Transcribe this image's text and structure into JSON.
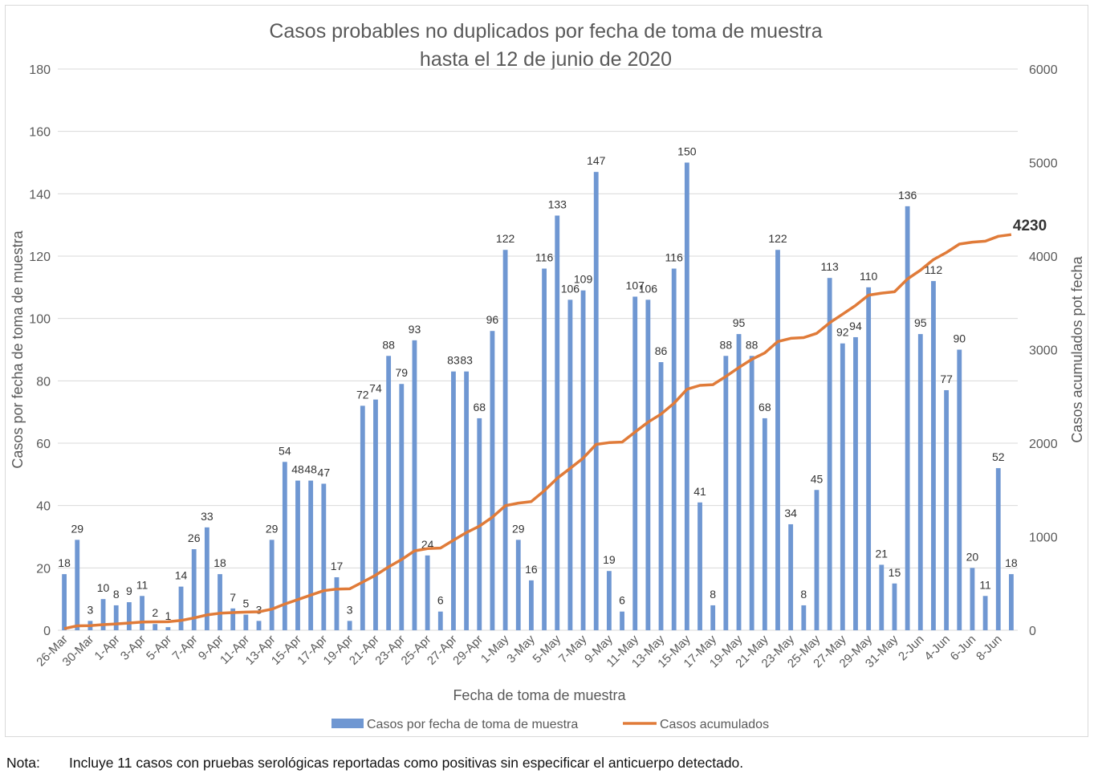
{
  "chart_data": {
    "type": "bar",
    "title_line1": "Casos probables no duplicados por fecha de toma de muestra",
    "title_line2": "hasta el 12 de junio de 2020",
    "xlabel": "Fecha de toma de muestra",
    "ylabel_left": "Casos por fecha de toma de muestra",
    "ylabel_right": "Casos acumulados pot fecha",
    "ylim_left": [
      0,
      180
    ],
    "ylim_right": [
      0,
      6000
    ],
    "yticks_left": [
      "0",
      "20",
      "40",
      "60",
      "80",
      "100",
      "120",
      "140",
      "160",
      "180"
    ],
    "yticks_right": [
      "0",
      "1000",
      "2000",
      "3000",
      "4000",
      "5000",
      "6000"
    ],
    "grid": true,
    "legend_position": "bottom",
    "x_tick_labels": [
      "26-Mar",
      "30-Mar",
      "1-Apr",
      "3-Apr",
      "5-Apr",
      "7-Apr",
      "9-Apr",
      "11-Apr",
      "13-Apr",
      "15-Apr",
      "17-Apr",
      "19-Apr",
      "21-Apr",
      "23-Apr",
      "25-Apr",
      "27-Apr",
      "29-Apr",
      "1-May",
      "3-May",
      "5-May",
      "7-May",
      "9-May",
      "11-May",
      "13-May",
      "15-May",
      "17-May",
      "19-May",
      "21-May",
      "23-May",
      "25-May",
      "27-May",
      "29-May",
      "31-May",
      "2-Jun",
      "4-Jun",
      "6-Jun",
      "8-Jun"
    ],
    "series": [
      {
        "name": "Casos por fecha de toma de muestra",
        "type": "bar",
        "axis": "left",
        "values": [
          18,
          29,
          3,
          10,
          8,
          9,
          11,
          2,
          1,
          14,
          26,
          33,
          18,
          7,
          5,
          3,
          29,
          54,
          48,
          48,
          47,
          17,
          3,
          72,
          74,
          88,
          79,
          93,
          24,
          6,
          83,
          83,
          68,
          96,
          122,
          29,
          16,
          116,
          133,
          106,
          109,
          147,
          19,
          6,
          107,
          106,
          86,
          116,
          150,
          41,
          8,
          88,
          95,
          88,
          68,
          122,
          34,
          8,
          45,
          113,
          92,
          94,
          110,
          21,
          15,
          136,
          95,
          112,
          77,
          90,
          20,
          11,
          52,
          18
        ]
      },
      {
        "name": "Casos acumulados",
        "type": "line",
        "axis": "right",
        "values": [
          18,
          47,
          50,
          60,
          68,
          77,
          88,
          90,
          91,
          105,
          131,
          164,
          182,
          189,
          194,
          197,
          226,
          280,
          328,
          376,
          423,
          440,
          443,
          515,
          589,
          677,
          756,
          849,
          873,
          879,
          962,
          1045,
          1113,
          1209,
          1331,
          1360,
          1376,
          1492,
          1625,
          1731,
          1840,
          1987,
          2006,
          2012,
          2119,
          2225,
          2311,
          2427,
          2577,
          2618,
          2626,
          2714,
          2809,
          2897,
          2965,
          3087,
          3121,
          3129,
          3174,
          3287,
          3379,
          3473,
          3583,
          3604,
          3619,
          3755,
          3850,
          3962,
          4039,
          4129,
          4149,
          4160,
          4212,
          4230
        ],
        "end_label": "4230"
      }
    ]
  },
  "colors": {
    "bar": "#6f97d2",
    "line": "#e07b39",
    "grid": "#d9d9d9",
    "text": "#595959",
    "title": "#595959"
  },
  "note": {
    "label": "Nota:",
    "text": "Incluye 11 casos con pruebas serológicas reportadas como positivas sin especificar el anticuerpo detectado."
  }
}
